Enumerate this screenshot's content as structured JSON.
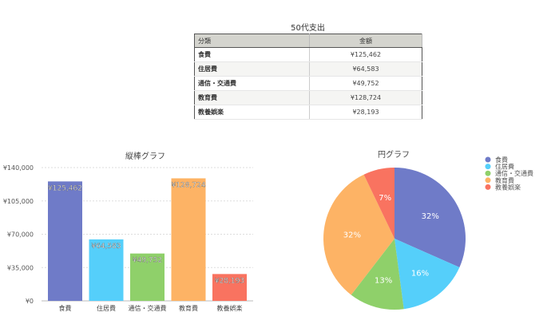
{
  "table": {
    "title": "50代支出",
    "headers": [
      "分類",
      "金額"
    ],
    "rows": [
      {
        "category": "食費",
        "amount": "¥125,462"
      },
      {
        "category": "住居費",
        "amount": "¥64,583"
      },
      {
        "category": "通信・交通費",
        "amount": "¥49,752"
      },
      {
        "category": "教育費",
        "amount": "¥128,724"
      },
      {
        "category": "教養娯楽",
        "amount": "¥28,193"
      }
    ]
  },
  "chart_data": [
    {
      "type": "bar",
      "title": "縦棒グラフ",
      "categories": [
        "食費",
        "住居費",
        "通信・交通費",
        "教育費",
        "教養娯楽"
      ],
      "values": [
        125462,
        64583,
        49752,
        128724,
        28193
      ],
      "data_labels": [
        "¥125,462",
        "¥64,583",
        "¥49,752",
        "¥128,724",
        "¥28,193"
      ],
      "ylim": [
        0,
        140000
      ],
      "yticks": [
        0,
        35000,
        70000,
        105000,
        140000
      ],
      "ytick_labels": [
        "¥0",
        "¥35,000",
        "¥70,000",
        "¥105,000",
        "¥140,000"
      ],
      "grid": true,
      "colors": [
        "#6f7bc8",
        "#55cffa",
        "#8fd06a",
        "#fdb365",
        "#f97360"
      ]
    },
    {
      "type": "pie",
      "title": "円グラフ",
      "categories": [
        "食費",
        "住居費",
        "通信・交通費",
        "教育費",
        "教養娯楽"
      ],
      "values": [
        125462,
        64583,
        49752,
        128724,
        28193
      ],
      "data_labels": [
        "32%",
        "16%",
        "13%",
        "32%",
        "7%"
      ],
      "legend": "top-right",
      "colors": [
        "#6f7bc8",
        "#55cffa",
        "#8fd06a",
        "#fdb365",
        "#f97360"
      ]
    }
  ]
}
